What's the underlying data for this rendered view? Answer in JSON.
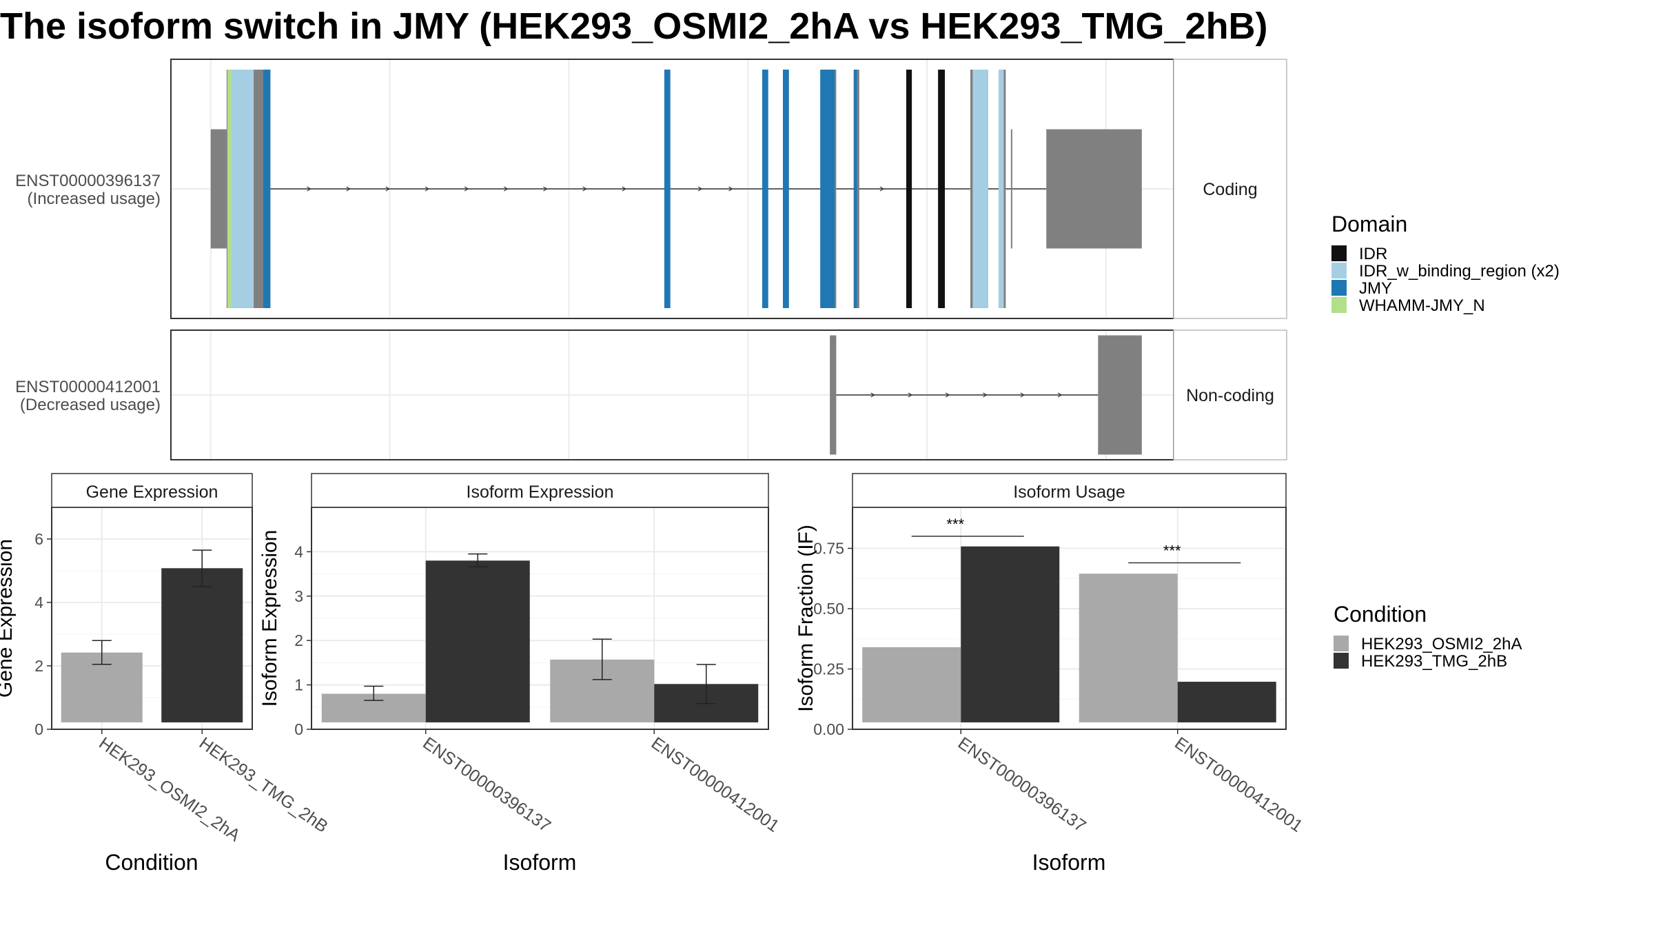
{
  "title": "The isoform switch in JMY (HEK293_OSMI2_2hA vs HEK293_TMG_2hB)",
  "colors": {
    "IDR": "#111111",
    "IDR_w_binding_region (x2)": "#a6cee3",
    "JMY": "#1f78b4",
    "WHAMM-JMY_N": "#b2df8a",
    "exon": "#808080",
    "HEK293_OSMI2_2hA": "#a9a9a9",
    "HEK293_TMG_2hB": "#333333"
  },
  "transcripts": [
    {
      "id": "ENST00000396137",
      "usage": "(Increased usage)",
      "strip": "Coding",
      "coding": true,
      "exons": [
        [
          100,
          140,
          "utr"
        ],
        [
          140,
          250,
          "cds"
        ],
        [
          1240,
          1255,
          "cds"
        ],
        [
          1486,
          1501,
          "cds"
        ],
        [
          1538,
          1553,
          "cds"
        ],
        [
          1632,
          1672,
          "cds"
        ],
        [
          1716,
          1730,
          "cds"
        ],
        [
          1848,
          1862,
          "cds"
        ],
        [
          1928,
          1945,
          "cds"
        ],
        [
          2009,
          2054,
          "cds"
        ],
        [
          2080,
          2098,
          "cds"
        ],
        [
          2111,
          2114,
          "utr"
        ],
        [
          2200,
          2440,
          "utr"
        ]
      ],
      "domains": [
        [
          142,
          154,
          "WHAMM-JMY_N"
        ],
        [
          152,
          208,
          "IDR_w_binding_region (x2)"
        ],
        [
          232,
          250,
          "JMY"
        ],
        [
          1240,
          1255,
          "JMY"
        ],
        [
          1486,
          1501,
          "JMY"
        ],
        [
          1538,
          1553,
          "JMY"
        ],
        [
          1632,
          1668,
          "JMY"
        ],
        [
          1716,
          1724,
          "JMY"
        ],
        [
          1848,
          1862,
          "IDR"
        ],
        [
          1928,
          1945,
          "IDR"
        ],
        [
          2015,
          2054,
          "IDR_w_binding_region (x2)"
        ],
        [
          2080,
          2093,
          "IDR_w_binding_region (x2)"
        ]
      ]
    },
    {
      "id": "ENST00000412001",
      "usage": "(Decreased usage)",
      "strip": "Non-coding",
      "coding": false,
      "exons": [
        [
          1656,
          1672,
          "utr"
        ],
        [
          2330,
          2440,
          "utr"
        ]
      ],
      "domains": []
    }
  ],
  "domain_legend": {
    "title": "Domain",
    "items": [
      "IDR",
      "IDR_w_binding_region (x2)",
      "JMY",
      "WHAMM-JMY_N"
    ]
  },
  "condition_legend": {
    "title": "Condition",
    "items": [
      "HEK293_OSMI2_2hA",
      "HEK293_TMG_2hB"
    ]
  },
  "chart_data": [
    {
      "type": "bar",
      "title": "Gene Expression",
      "xlabel": "Condition",
      "ylabel": "Gene Expression",
      "ylim": [
        0,
        7
      ],
      "yticks": [
        0,
        2,
        4,
        6
      ],
      "categories": [
        "HEK293_OSMI2_2hA",
        "HEK293_TMG_2hB"
      ],
      "series": [
        {
          "name": "HEK293_OSMI2_2hA",
          "values": [
            2.42,
            null
          ],
          "err_low": [
            2.05,
            null
          ],
          "err_high": [
            2.8,
            null
          ]
        },
        {
          "name": "HEK293_TMG_2hB",
          "values": [
            null,
            5.08
          ],
          "err_low": [
            null,
            4.5
          ],
          "err_high": [
            null,
            5.65
          ]
        }
      ]
    },
    {
      "type": "bar",
      "title": "Isoform Expression",
      "xlabel": "Isoform",
      "ylabel": "Isoform Expression",
      "ylim": [
        0,
        5
      ],
      "yticks": [
        0,
        1,
        2,
        3,
        4
      ],
      "categories": [
        "ENST00000396137",
        "ENST00000412001"
      ],
      "series": [
        {
          "name": "HEK293_OSMI2_2hA",
          "values": [
            0.8,
            1.57
          ],
          "err_low": [
            0.65,
            1.12
          ],
          "err_high": [
            0.97,
            2.03
          ]
        },
        {
          "name": "HEK293_TMG_2hB",
          "values": [
            3.8,
            1.02
          ],
          "err_low": [
            3.66,
            0.58
          ],
          "err_high": [
            3.95,
            1.46
          ]
        }
      ]
    },
    {
      "type": "bar",
      "title": "Isoform Usage",
      "xlabel": "Isoform",
      "ylabel": "Isoform Fraction (IF)",
      "ylim": [
        0,
        0.92
      ],
      "yticks": [
        0.0,
        0.25,
        0.5,
        0.75
      ],
      "ytick_labels": [
        "0.00",
        "0.25",
        "0.50",
        "0.75"
      ],
      "categories": [
        "ENST00000396137",
        "ENST00000412001"
      ],
      "series": [
        {
          "name": "HEK293_OSMI2_2hA",
          "values": [
            0.34,
            0.645
          ]
        },
        {
          "name": "HEK293_TMG_2hB",
          "values": [
            0.758,
            0.197
          ]
        }
      ],
      "significance": [
        {
          "category": "ENST00000396137",
          "label": "***",
          "y": 0.8
        },
        {
          "category": "ENST00000412001",
          "label": "***",
          "y": 0.69
        }
      ]
    }
  ]
}
